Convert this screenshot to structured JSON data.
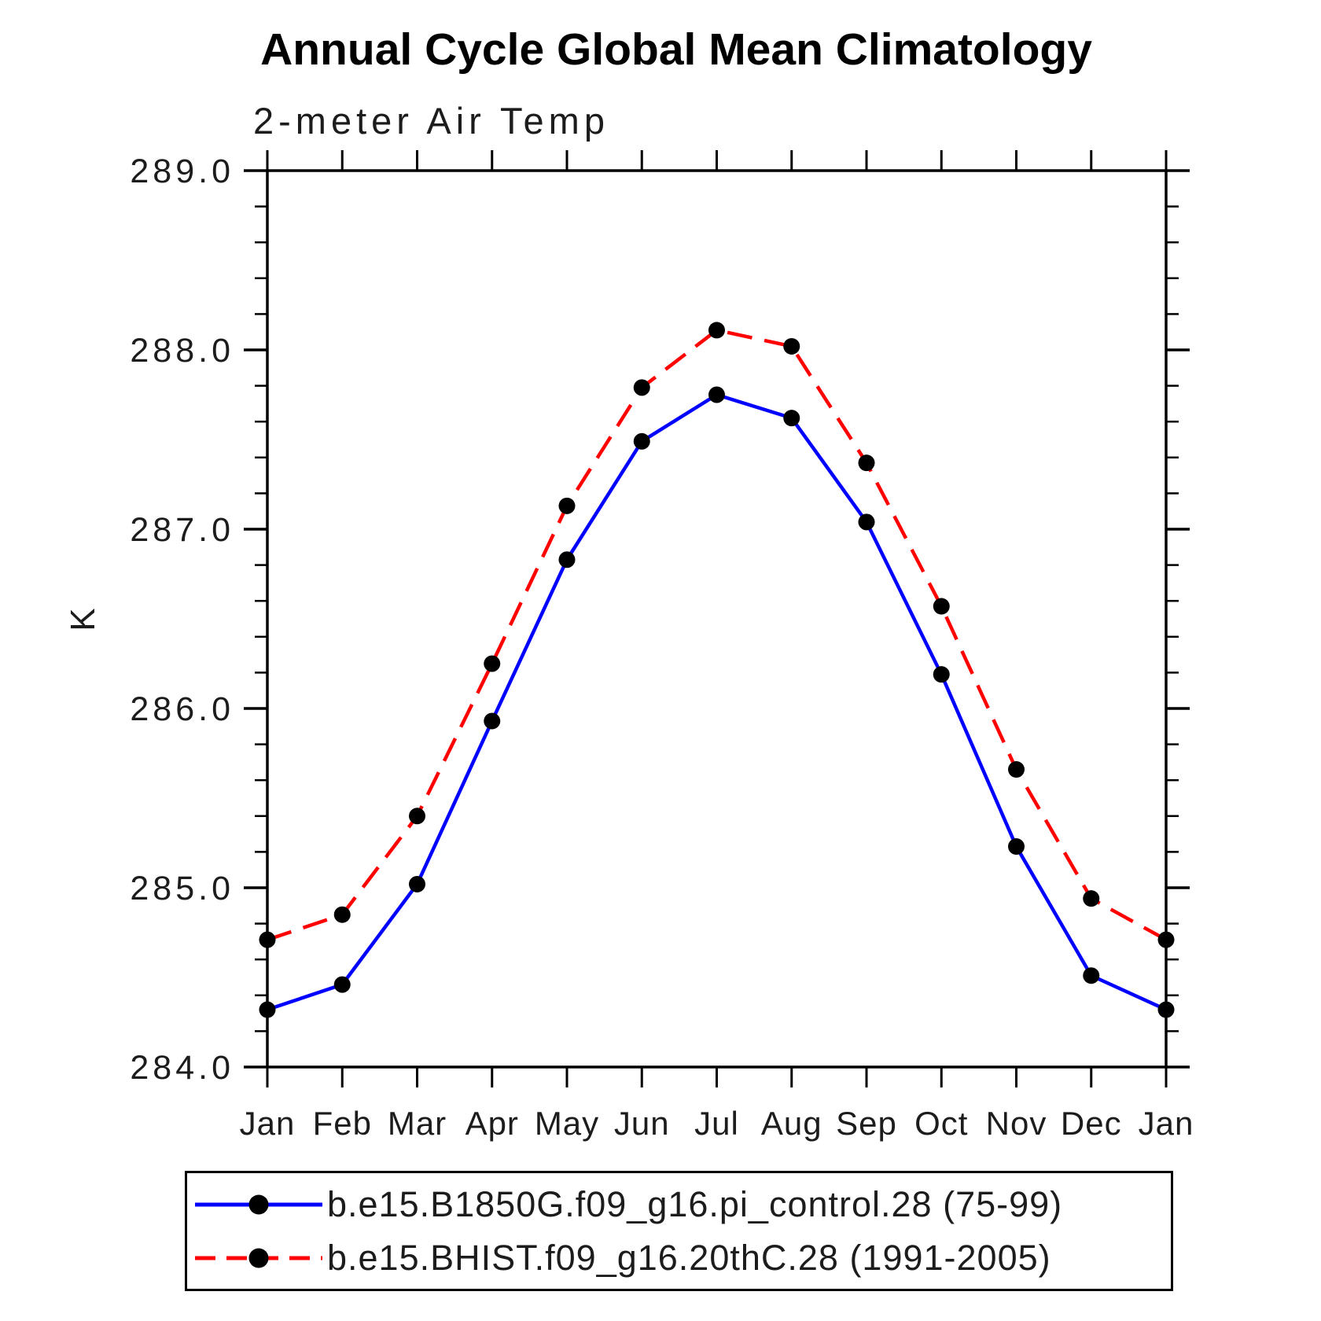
{
  "header": {
    "title": "Annual Cycle Global Mean Climatology",
    "subtitle": "2-meter Air Temp"
  },
  "y_axis": {
    "label": "K",
    "tick_labels": [
      "284.0",
      "285.0",
      "286.0",
      "287.0",
      "288.0",
      "289.0"
    ]
  },
  "x_axis": {
    "tick_labels": [
      "Jan",
      "Feb",
      "Mar",
      "Apr",
      "May",
      "Jun",
      "Jul",
      "Aug",
      "Sep",
      "Oct",
      "Nov",
      "Dec",
      "Jan"
    ]
  },
  "legend": {
    "entries": [
      {
        "label": "b.e15.B1850G.f09_g16.pi_control.28 (75-99)",
        "line_color": "#0000ff",
        "line_style": "solid",
        "marker_color": "#000000"
      },
      {
        "label": "b.e15.BHIST.f09_g16.20thC.28 (1991-2005)",
        "line_color": "#ff0000",
        "line_style": "dashed",
        "marker_color": "#000000"
      }
    ]
  },
  "colors": {
    "series_blue": "#0000ff",
    "series_red": "#ff0000",
    "marker": "#000000",
    "axis": "#000000"
  },
  "chart_data": {
    "type": "line",
    "title": "Annual Cycle Global Mean Climatology",
    "subtitle": "2-meter Air Temp",
    "xlabel": "",
    "ylabel": "K",
    "categories": [
      "Jan",
      "Feb",
      "Mar",
      "Apr",
      "May",
      "Jun",
      "Jul",
      "Aug",
      "Sep",
      "Oct",
      "Nov",
      "Dec",
      "Jan"
    ],
    "ylim": [
      284.0,
      289.0
    ],
    "ytick_major": 1.0,
    "ytick_minor": 0.2,
    "grid": false,
    "legend_position": "bottom",
    "series": [
      {
        "name": "b.e15.B1850G.f09_g16.pi_control.28 (75-99)",
        "color": "#0000ff",
        "style": "solid",
        "marker": "circle",
        "marker_color": "#000000",
        "values": [
          284.32,
          284.46,
          285.02,
          285.93,
          286.83,
          287.49,
          287.75,
          287.62,
          287.04,
          286.19,
          285.23,
          284.51,
          284.32
        ]
      },
      {
        "name": "b.e15.BHIST.f09_g16.20thC.28 (1991-2005)",
        "color": "#ff0000",
        "style": "dashed",
        "marker": "circle",
        "marker_color": "#000000",
        "values": [
          284.71,
          284.85,
          285.4,
          286.25,
          287.13,
          287.79,
          288.11,
          288.02,
          287.37,
          286.57,
          285.66,
          284.94,
          284.71
        ]
      }
    ]
  }
}
